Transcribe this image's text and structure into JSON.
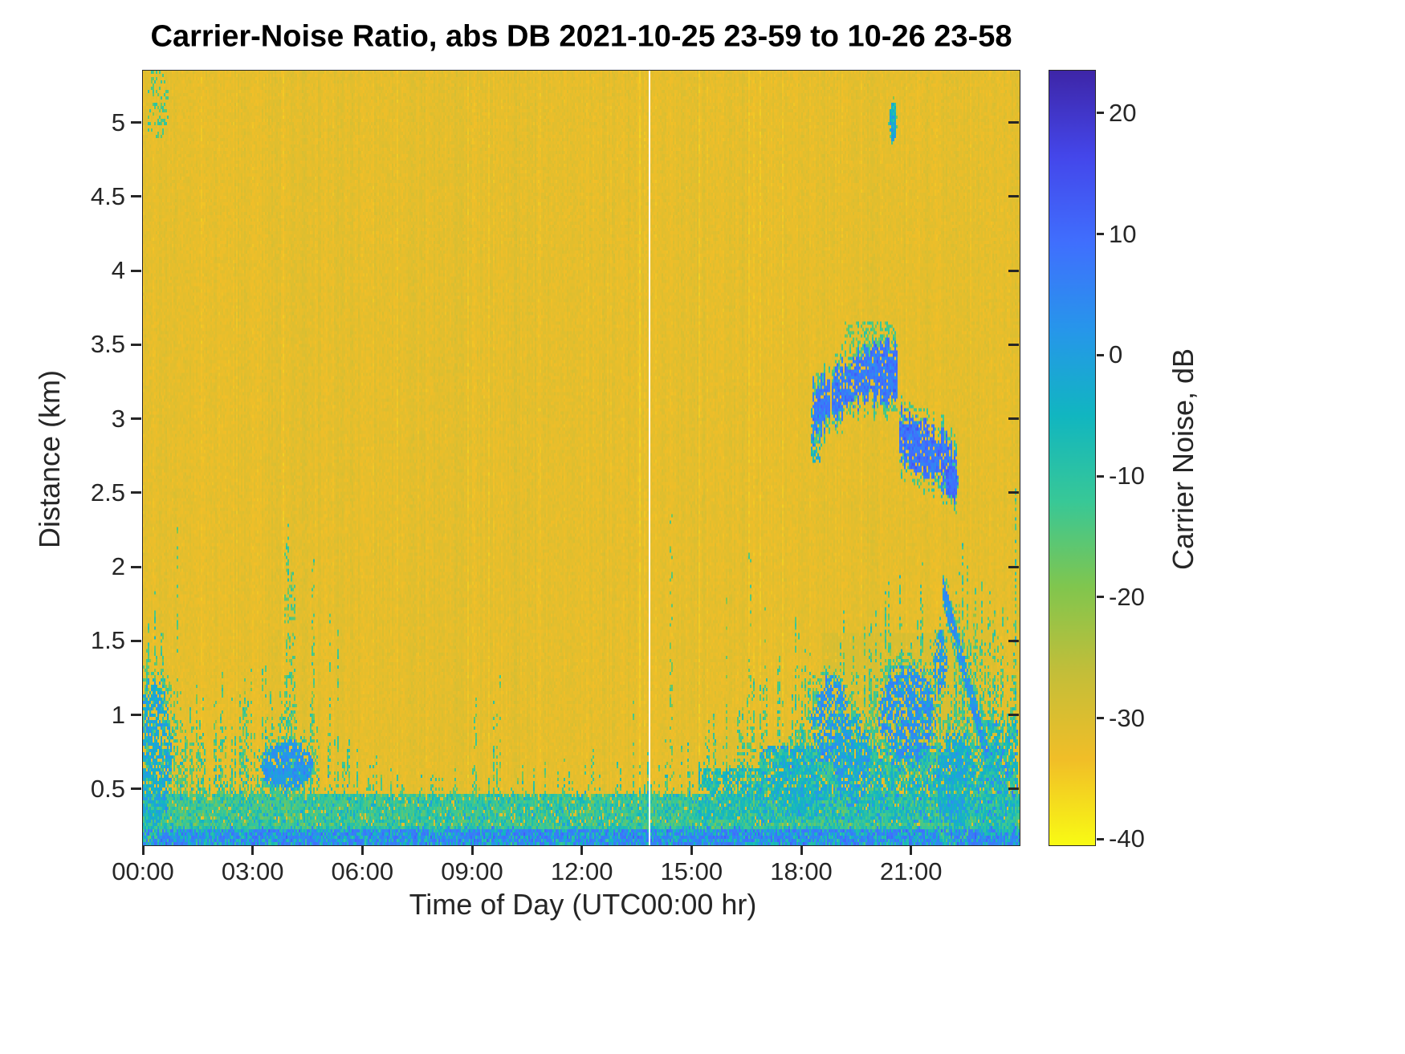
{
  "chart_data": {
    "type": "heatmap",
    "title": "Carrier-Noise Ratio, abs DB 2021-10-25 23-59 to 10-26 23-58",
    "xlabel": "Time of Day (UTC00:00 hr)",
    "ylabel": "Distance (km)",
    "xlim": [
      0,
      23.97
    ],
    "ylim": [
      0.12,
      5.35
    ],
    "x_tick_values": [
      0,
      3,
      6,
      9,
      12,
      15,
      18,
      21
    ],
    "x_tick_labels": [
      "00:00",
      "03:00",
      "06:00",
      "09:00",
      "12:00",
      "15:00",
      "18:00",
      "21:00"
    ],
    "y_tick_values": [
      0.5,
      1,
      1.5,
      2,
      2.5,
      3,
      3.5,
      4,
      4.5,
      5
    ],
    "y_tick_labels": [
      "0.5",
      "1",
      "1.5",
      "2",
      "2.5",
      "3",
      "3.5",
      "4",
      "4.5",
      "5"
    ],
    "colorbar": {
      "label": "Carrier Noise, dB",
      "clim": [
        -40.5,
        23.5
      ],
      "tick_values": [
        20,
        10,
        0,
        -10,
        -20,
        -30,
        -40
      ],
      "tick_labels": [
        "20",
        "10",
        "0",
        "-10",
        "-20",
        "-30",
        "-40"
      ]
    },
    "value_units": "dB",
    "colormap": [
      "#3E26A8",
      "#4447EB",
      "#406FFE",
      "#2796EB",
      "#11B6C1",
      "#38C897",
      "#81C64E",
      "#C4BE39",
      "#F1BE28",
      "#F9FB14"
    ],
    "observations": [
      "Background carrier-noise level about -30 to -33 dB (orange) over the whole day",
      "Strong surface return layer below ~0.4 km at all times (blue/cyan, about -10 to +10 dB)",
      "Convective plumes reaching 1 to 2.3 km between 00:00 and 06:00",
      "Blue patch (about 0 to 5 dB) at 0.5-0.85 km around 03:30-04:30",
      "Quiet shallow layer (below ~0.6 km) from about 06:00 to 15:00",
      "Boundary layer deepens after 15:00; dense blue/cyan structure 0.3-1.3 km from 17:00 to 23:30",
      "Elevated layer at 3.0-3.45 km from about 18:20 to 20:40 (0 to 12 dB)",
      "Second elevated layer at 2.55-2.95 km from about 20:40 to 22:15",
      "Descending feature from ~1.8 km at 21:55 to ~0.6 km at 23:15",
      "Small elevated echo near 5.0 km around 20:30",
      "Thin white data-gap column near 13:50"
    ],
    "render": {
      "seed": 7,
      "grid": {
        "nx": 546,
        "ny": 241
      },
      "bg": {
        "value": -31.5,
        "noise": 2.0,
        "colNoise": 1.5,
        "darkColProb": 0.06
      },
      "features": [
        {
          "type": "band",
          "t": [
            0,
            23.97
          ],
          "km": [
            0.1,
            0.25
          ],
          "density": 1.0,
          "value": 6,
          "spread": 5,
          "altValue": -7,
          "altProb": 0.35
        },
        {
          "type": "band",
          "t": [
            0,
            23.97
          ],
          "km": [
            0.25,
            0.45
          ],
          "density": 0.88,
          "value": -11,
          "spread": 6.5,
          "altValue": -3,
          "altProb": 0.12
        },
        {
          "type": "blcurve",
          "kmin": 0.25,
          "density": 0.75,
          "value": -13,
          "spread": 7,
          "blueValue": -3,
          "blueProb": 0.12,
          "pts": [
            [
              0,
              1.3
            ],
            [
              0.6,
              1.0
            ],
            [
              1.2,
              0.8
            ],
            [
              2,
              0.8
            ],
            [
              3,
              0.85
            ],
            [
              4,
              0.9
            ],
            [
              4.8,
              0.75
            ],
            [
              5.5,
              0.6
            ],
            [
              6.5,
              0.5
            ],
            [
              8,
              0.45
            ],
            [
              13,
              0.45
            ],
            [
              14.5,
              0.55
            ],
            [
              15.5,
              0.7
            ],
            [
              16.5,
              0.85
            ],
            [
              17.5,
              1.0
            ],
            [
              18.5,
              1.15
            ],
            [
              19.5,
              1.2
            ],
            [
              21,
              1.25
            ],
            [
              22,
              1.4
            ],
            [
              22.7,
              1.6
            ],
            [
              23.3,
              1.2
            ],
            [
              23.9,
              1.0
            ]
          ]
        },
        {
          "type": "plumes",
          "t": [
            0,
            5.9
          ],
          "prob": 0.13,
          "hmin": 0.6,
          "hmax": 2.3,
          "density": 0.5,
          "value": -14,
          "spread": 6,
          "kmin": 0.25
        },
        {
          "type": "plumes",
          "t": [
            6,
            14.3
          ],
          "prob": 0.07,
          "hmin": 0.5,
          "hmax": 1.4,
          "density": 0.4,
          "value": -15,
          "spread": 5,
          "kmin": 0.25
        },
        {
          "type": "plumes",
          "t": [
            14.4,
            16.3
          ],
          "prob": 0.06,
          "hmin": 1.6,
          "hmax": 3.6,
          "density": 0.3,
          "value": -16,
          "spread": 4,
          "kmin": 0.3
        },
        {
          "type": "plumes",
          "t": [
            16.3,
            18.2
          ],
          "prob": 0.1,
          "hmin": 1.2,
          "hmax": 2.3,
          "density": 0.32,
          "value": -15,
          "spread": 5,
          "kmin": 0.3
        },
        {
          "type": "band",
          "t": [
            0.15,
            0.7
          ],
          "km": [
            4.9,
            5.35
          ],
          "density": 0.22,
          "value": -14,
          "spread": 5
        },
        {
          "type": "band",
          "t": [
            15.2,
            16.9
          ],
          "km": [
            0.3,
            0.62
          ],
          "density": 0.6,
          "value": -6,
          "spread": 6
        },
        {
          "type": "band",
          "t": [
            16.9,
            23.6
          ],
          "km": [
            0.28,
            0.78
          ],
          "density": 0.6,
          "value": -7,
          "spread": 7,
          "altValue": 3,
          "altProb": 0.18
        },
        {
          "type": "haze",
          "t": [
            18.6,
            22.45
          ],
          "km": [
            0.78,
            1.55
          ],
          "target": -27.5,
          "mix": 0.5,
          "prob": 0.85
        },
        {
          "type": "haze",
          "t": [
            15.6,
            18.6
          ],
          "km": [
            0.25,
            0.85
          ],
          "target": -28,
          "mix": 0.35,
          "prob": 0.8
        },
        {
          "type": "haze",
          "t": [
            21.9,
            23.3
          ],
          "km": [
            0.6,
            1.6
          ],
          "target": -28.5,
          "mix": 0.4,
          "prob": 0.8
        },
        {
          "type": "blob",
          "tc": 0.3,
          "kc": 0.75,
          "rt": 0.5,
          "rk": 0.5,
          "density": 0.6,
          "value": -2,
          "spread": 6,
          "fringe": -13
        },
        {
          "type": "blob",
          "tc": 3.95,
          "kc": 0.66,
          "rt": 0.7,
          "rk": 0.16,
          "density": 0.85,
          "value": 2,
          "spread": 5,
          "fringe": -12
        },
        {
          "type": "blob",
          "tc": 18.0,
          "kc": 0.55,
          "rt": 0.8,
          "rk": 0.25,
          "density": 0.6,
          "value": -4,
          "spread": 6,
          "fringe": -13
        },
        {
          "type": "blob",
          "tc": 18.8,
          "kc": 0.95,
          "rt": 0.5,
          "rk": 0.3,
          "density": 0.6,
          "value": 2,
          "spread": 5,
          "fringe": -13
        },
        {
          "type": "blob",
          "tc": 19.4,
          "kc": 0.7,
          "rt": 0.5,
          "rk": 0.3,
          "density": 0.55,
          "value": 0,
          "spread": 5,
          "fringe": -13
        },
        {
          "type": "blob",
          "tc": 20.9,
          "kc": 1.0,
          "rt": 0.75,
          "rk": 0.33,
          "density": 0.65,
          "value": 3,
          "spread": 5,
          "fringe": -13
        },
        {
          "type": "blob",
          "tc": 21.8,
          "kc": 1.35,
          "rt": 0.18,
          "rk": 0.2,
          "density": 0.7,
          "value": 2,
          "spread": 5,
          "fringe": -13
        },
        {
          "type": "blob",
          "tc": 22.2,
          "kc": 0.55,
          "rt": 0.5,
          "rk": 0.35,
          "density": 0.6,
          "value": -2,
          "spread": 6,
          "fringe": -13
        },
        {
          "type": "band",
          "t": [
            18.3,
            18.52
          ],
          "km": [
            2.72,
            3.05
          ],
          "density": 0.55,
          "value": -3,
          "spread": 6
        },
        {
          "type": "band",
          "t": [
            19.2,
            20.55
          ],
          "km": [
            3.42,
            3.64
          ],
          "density": 0.28,
          "value": -14,
          "spread": 5
        },
        {
          "type": "layer",
          "thick": 0.32,
          "density": 0.88,
          "value": 7,
          "spread": 5,
          "fringe": -13,
          "gapProb": 0.06,
          "pts": [
            [
              18.35,
              3.05
            ],
            [
              18.7,
              3.12
            ],
            [
              19.1,
              3.2
            ],
            [
              19.6,
              3.28
            ],
            [
              20.0,
              3.33
            ],
            [
              20.6,
              3.3
            ]
          ]
        },
        {
          "type": "layer",
          "thick": 0.3,
          "density": 0.88,
          "value": 8,
          "spread": 5,
          "fringe": -13,
          "gapProb": 0.05,
          "pts": [
            [
              20.72,
              2.88
            ],
            [
              21.1,
              2.82
            ],
            [
              21.5,
              2.78
            ],
            [
              21.9,
              2.72
            ],
            [
              22.25,
              2.6
            ]
          ]
        },
        {
          "type": "blob",
          "tc": 22.1,
          "kc": 2.58,
          "rt": 0.18,
          "rk": 0.1,
          "density": 0.9,
          "value": 10,
          "spread": 4,
          "fringe": -12
        },
        {
          "type": "blob",
          "tc": 20.5,
          "kc": 5.0,
          "rt": 0.09,
          "rk": 0.14,
          "density": 0.9,
          "value": -3,
          "spread": 7,
          "fringe": -15
        },
        {
          "type": "diag",
          "from": [
            21.9,
            1.82
          ],
          "to": [
            23.2,
            0.62
          ],
          "w": 0.09,
          "density": 0.85,
          "value": 3,
          "spread": 5,
          "fringe": -12
        },
        {
          "type": "band",
          "t": [
            23.0,
            23.9
          ],
          "km": [
            0.2,
            0.95
          ],
          "density": 0.55,
          "value": -7,
          "spread": 7,
          "altValue": 4,
          "altProb": 0.15
        },
        {
          "type": "gap",
          "t": 13.85
        }
      ]
    }
  },
  "style": {
    "text_color": "#262626",
    "title_color": "#000000",
    "background_orange": "#E8BD2C"
  }
}
